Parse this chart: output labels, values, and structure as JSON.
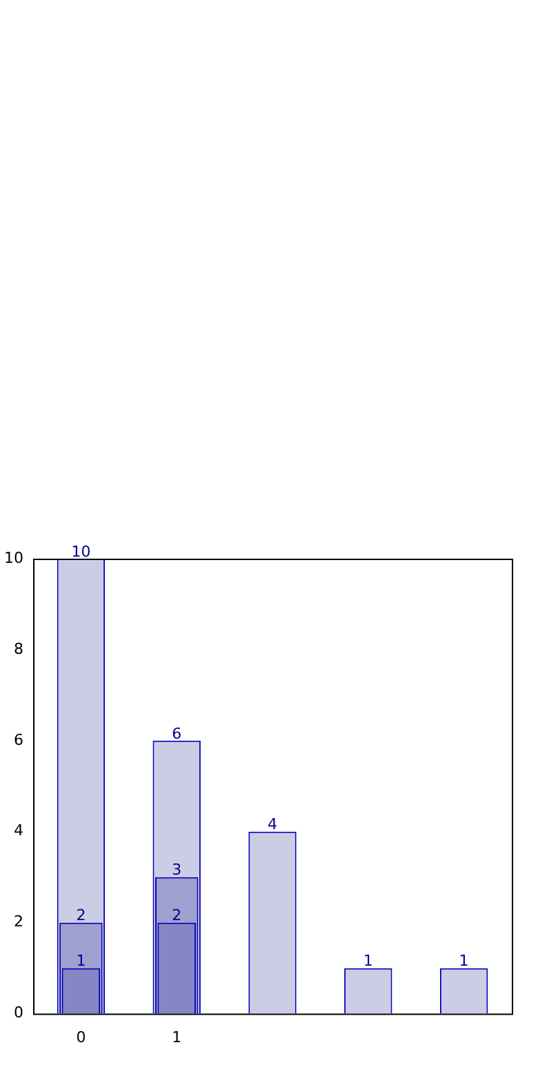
{
  "chart_data": {
    "type": "bar",
    "categories": [
      "0",
      "1",
      null,
      null,
      null
    ],
    "series": [
      {
        "color": "#ccccE5",
        "values": [
          10,
          6,
          4,
          1,
          1
        ]
      },
      {
        "color": "#a0a0d0",
        "values": [
          2,
          3,
          null,
          null,
          null
        ]
      },
      {
        "color": "#8686c4",
        "values": [
          1,
          2,
          null,
          null,
          null
        ]
      }
    ],
    "ylim": [
      0,
      10
    ],
    "yticks": [
      0,
      2,
      4,
      6,
      8,
      10
    ],
    "data_labels": true,
    "legend": false,
    "grid": false
  }
}
